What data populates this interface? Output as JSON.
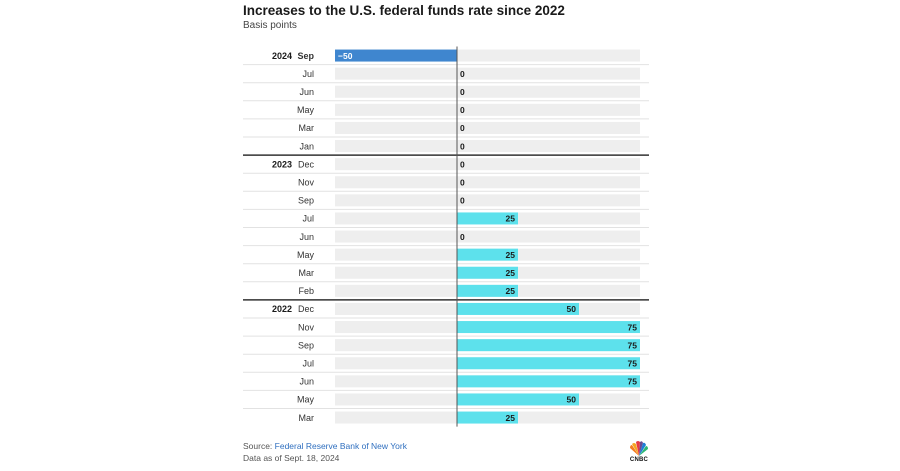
{
  "title": "Increases to the U.S. federal funds rate since 2022",
  "subtitle": "Basis points",
  "source_label": "Source: ",
  "source_name": "Federal Reserve Bank of New York",
  "as_of": "Data as of Sept. 18, 2024",
  "logo_text": "CNBC",
  "colors": {
    "positive": "#5de1ec",
    "negative": "#3f86cf",
    "track": "#eeeeee",
    "year_divider": "#333333",
    "row_divider": "#e2e2e2",
    "axis": "#555555"
  },
  "chart_data": {
    "type": "bar",
    "orientation": "horizontal",
    "title": "Increases to the U.S. federal funds rate since 2022",
    "subtitle": "Basis points",
    "xlim": [
      -100,
      150
    ],
    "rows": [
      {
        "year": "2024",
        "month": "Sep",
        "value": -50,
        "label": "−50"
      },
      {
        "year": "",
        "month": "Jul",
        "value": 0,
        "label": "0"
      },
      {
        "year": "",
        "month": "Jun",
        "value": 0,
        "label": "0"
      },
      {
        "year": "",
        "month": "May",
        "value": 0,
        "label": "0"
      },
      {
        "year": "",
        "month": "Mar",
        "value": 0,
        "label": "0"
      },
      {
        "year": "",
        "month": "Jan",
        "value": 0,
        "label": "0"
      },
      {
        "year": "2023",
        "month": "Dec",
        "value": 0,
        "label": "0"
      },
      {
        "year": "",
        "month": "Nov",
        "value": 0,
        "label": "0"
      },
      {
        "year": "",
        "month": "Sep",
        "value": 0,
        "label": "0"
      },
      {
        "year": "",
        "month": "Jul",
        "value": 25,
        "label": "25"
      },
      {
        "year": "",
        "month": "Jun",
        "value": 0,
        "label": "0"
      },
      {
        "year": "",
        "month": "May",
        "value": 25,
        "label": "25"
      },
      {
        "year": "",
        "month": "Mar",
        "value": 25,
        "label": "25"
      },
      {
        "year": "",
        "month": "Feb",
        "value": 25,
        "label": "25"
      },
      {
        "year": "2022",
        "month": "Dec",
        "value": 50,
        "label": "50"
      },
      {
        "year": "",
        "month": "Nov",
        "value": 75,
        "label": "75"
      },
      {
        "year": "",
        "month": "Sep",
        "value": 75,
        "label": "75"
      },
      {
        "year": "",
        "month": "Jul",
        "value": 75,
        "label": "75"
      },
      {
        "year": "",
        "month": "Jun",
        "value": 75,
        "label": "75"
      },
      {
        "year": "",
        "month": "May",
        "value": 50,
        "label": "50"
      },
      {
        "year": "",
        "month": "Mar",
        "value": 25,
        "label": "25"
      }
    ]
  }
}
